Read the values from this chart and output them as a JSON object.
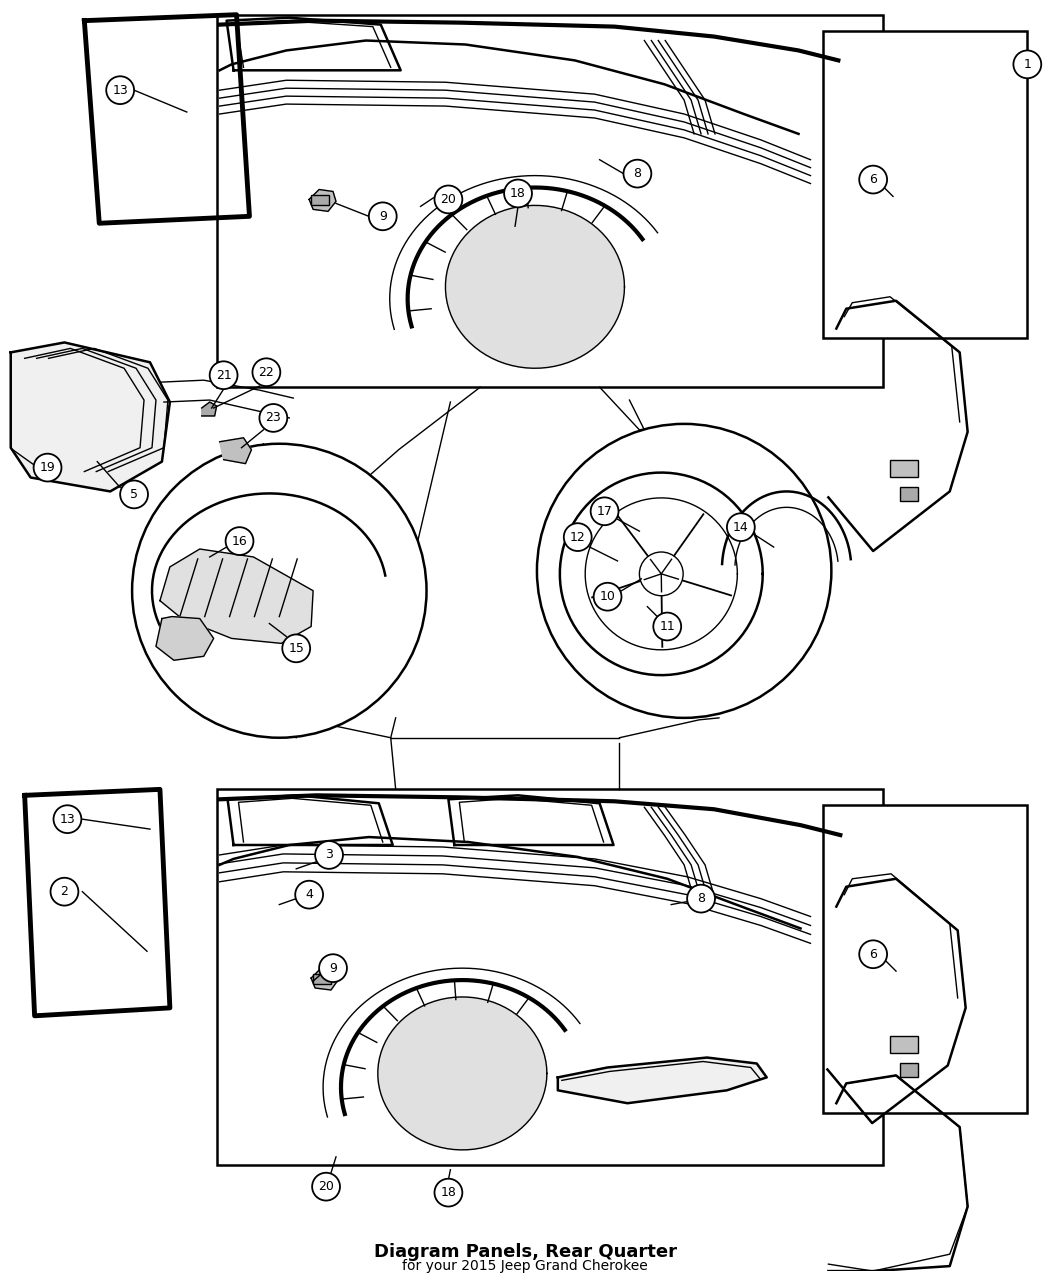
{
  "title": "Diagram Panels, Rear Quarter",
  "subtitle": "for your 2015 Jeep Grand Cherokee",
  "bg_color": "#ffffff",
  "line_color": "#000000",
  "fig_width": 10.5,
  "fig_height": 12.77,
  "dpi": 100
}
